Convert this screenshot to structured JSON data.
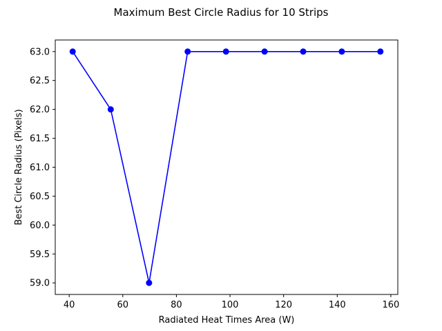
{
  "chart_data": {
    "type": "line",
    "title": "Maximum Best Circle Radius for 10 Strips",
    "xlabel": "Radiated Heat Times Area (W)",
    "ylabel": "Best Circle Radius (Pixels)",
    "xlim": [
      34.8,
      162.6
    ],
    "ylim": [
      58.8,
      63.2
    ],
    "x_ticks": [
      40,
      60,
      80,
      100,
      120,
      140,
      160
    ],
    "y_ticks": [
      59.0,
      59.5,
      60.0,
      60.5,
      61.0,
      61.5,
      62.0,
      62.5,
      63.0
    ],
    "x_tick_labels": [
      "40",
      "60",
      "80",
      "100",
      "120",
      "140",
      "160"
    ],
    "y_tick_labels": [
      "59.0",
      "59.5",
      "60.0",
      "60.5",
      "61.0",
      "61.5",
      "62.0",
      "62.5",
      "63.0"
    ],
    "grid": false,
    "series": [
      {
        "color": "#0000ff",
        "marker": "circle",
        "x": [
          41.3,
          55.5,
          69.8,
          84.2,
          98.5,
          112.9,
          127.3,
          141.7,
          156.1
        ],
        "y": [
          63.0,
          62.0,
          59.0,
          63.0,
          63.0,
          63.0,
          63.0,
          63.0,
          63.0
        ]
      }
    ]
  }
}
